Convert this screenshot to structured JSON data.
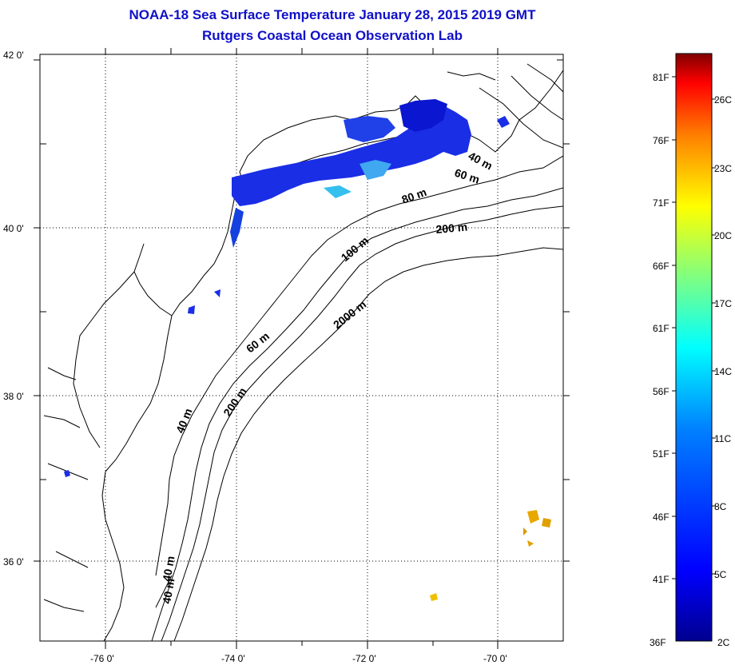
{
  "header": {
    "title": "NOAA-18 Sea Surface Temperature January 28, 2015 2019 GMT",
    "subtitle": "Rutgers Coastal Ocean Observation Lab"
  },
  "map": {
    "lat_labels": [
      "42 0'",
      "40 0'",
      "38 0'",
      "36 0'"
    ],
    "lon_labels": [
      "-76 0'",
      "-74 0'",
      "-72 0'",
      "-70 0'"
    ],
    "contour_labels": [
      "40 m",
      "60 m",
      "80 m",
      "200 m",
      "100 m",
      "2000 m",
      "60 m",
      "40 m",
      "200 m",
      "40 m",
      "40 m"
    ],
    "grid": "dotted"
  },
  "colorbar": {
    "fahrenheit_labels": [
      "81F",
      "76F",
      "71F",
      "66F",
      "61F",
      "56F",
      "51F",
      "46F",
      "41F",
      "36F"
    ],
    "celsius_labels": [
      "26C",
      "23C",
      "20C",
      "17C",
      "14C",
      "11C",
      "8C",
      "5C",
      "2C"
    ],
    "colors": [
      "#00008f",
      "#0000ff",
      "#0080ff",
      "#00ffff",
      "#80ff80",
      "#ffff00",
      "#ff8000",
      "#ff0000",
      "#800000"
    ]
  }
}
